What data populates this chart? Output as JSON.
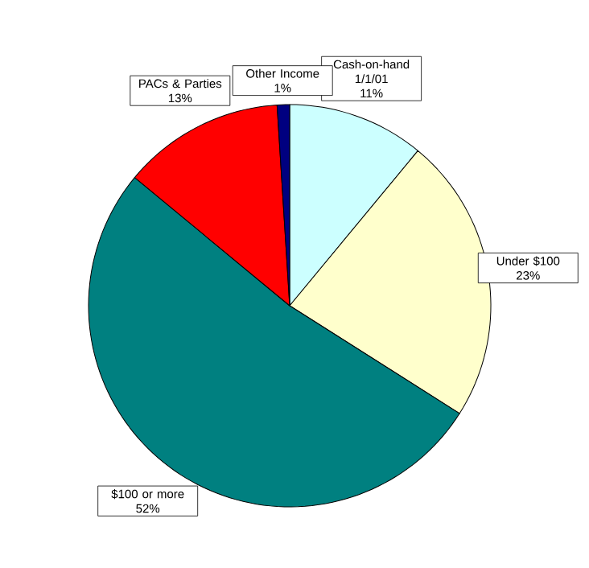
{
  "chart_data": {
    "type": "pie",
    "categories": [
      "Cash-on-hand 1/1/01",
      "Under $100",
      "$100 or more",
      "PACs & Parties",
      "Other Income"
    ],
    "values": [
      11,
      23,
      52,
      13,
      1
    ],
    "value_labels": [
      "11%",
      "23%",
      "52%",
      "13%",
      "1%"
    ],
    "colors": [
      "#ccffff",
      "#ffffcc",
      "#008080",
      "#ff0000",
      "#000080"
    ]
  }
}
